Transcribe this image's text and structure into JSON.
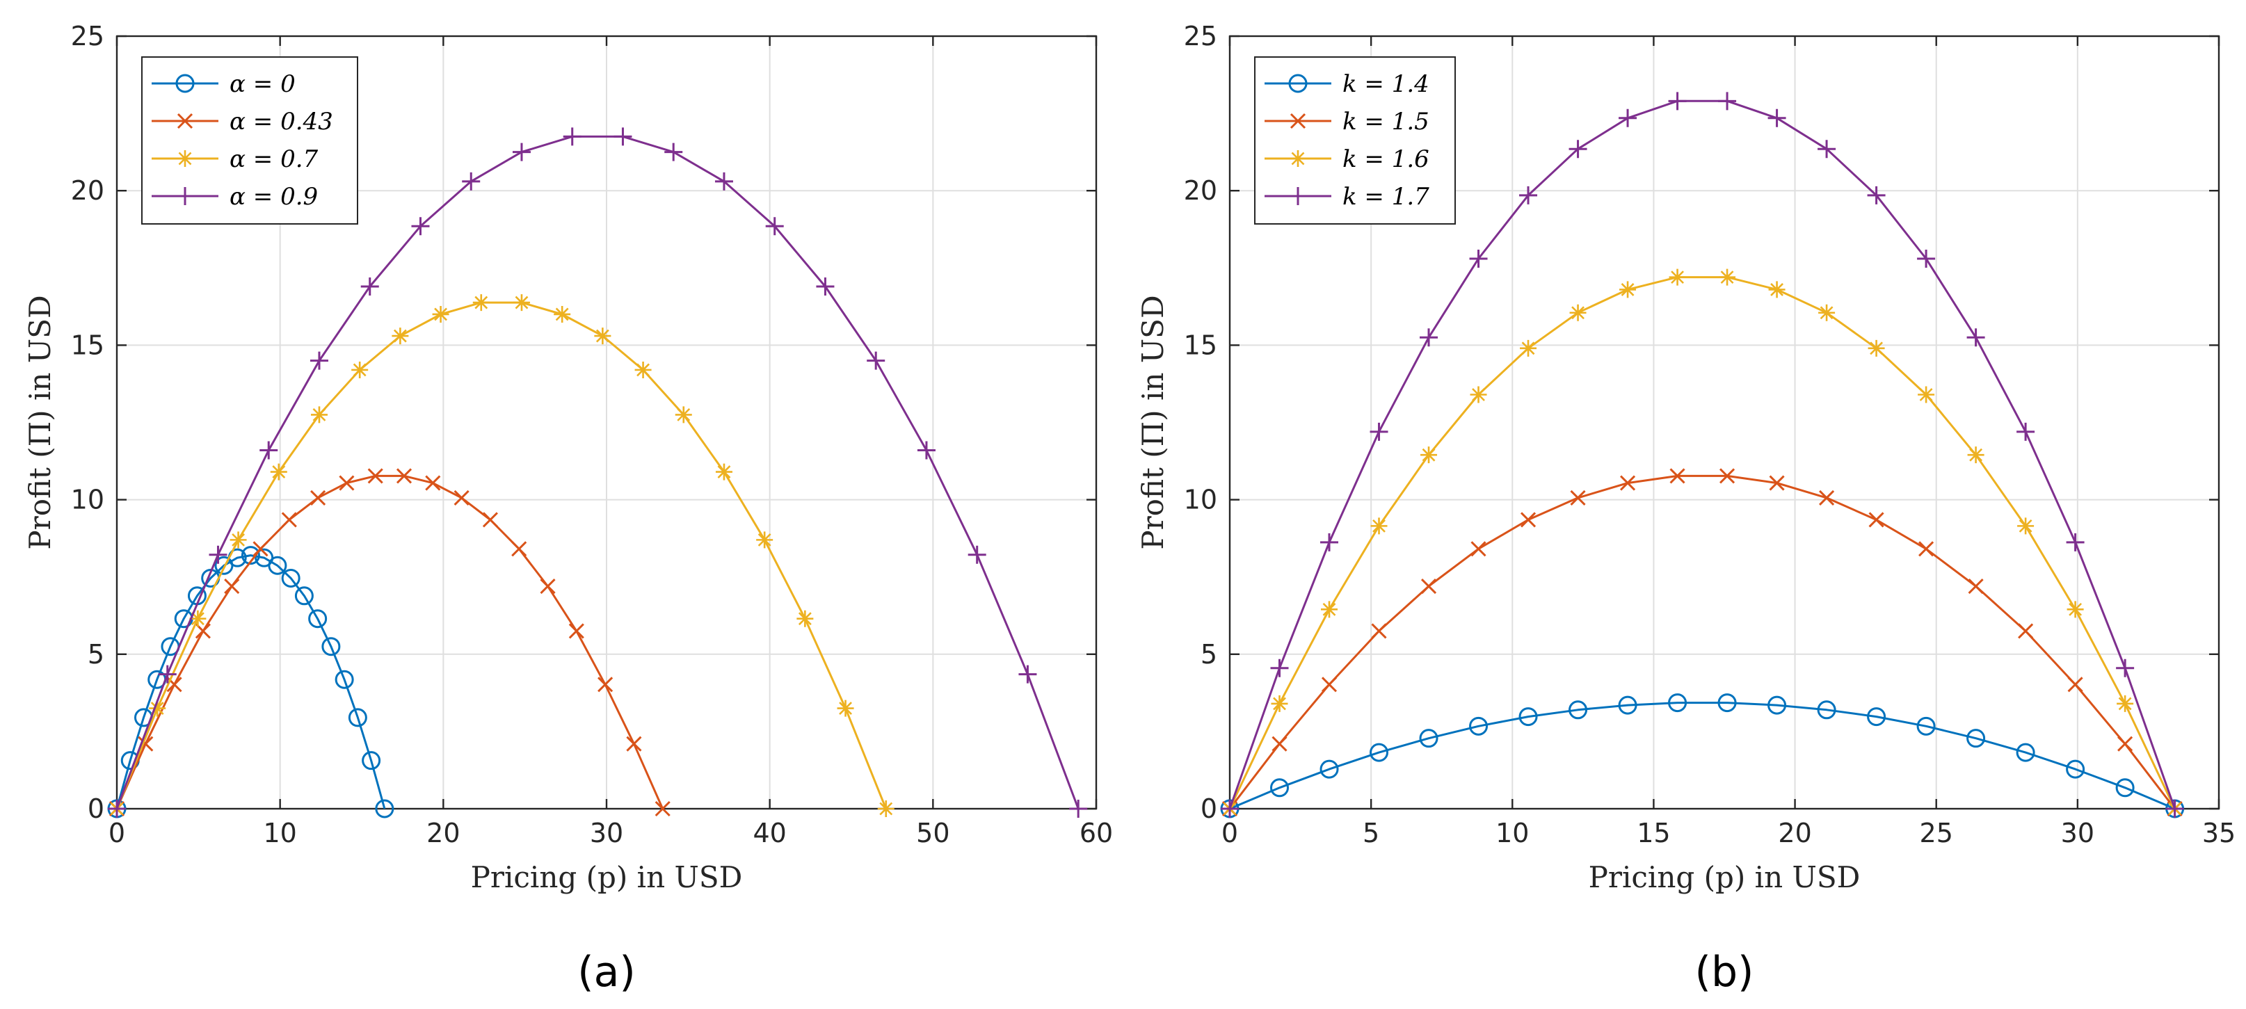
{
  "chart_data": [
    {
      "id": "a",
      "type": "line",
      "panel_label": "(a)",
      "panel_letter": "a",
      "xlabel": "Pricing (p) in USD",
      "ylabel": "Profit (Π) in USD",
      "xlim": [
        0,
        60
      ],
      "ylim": [
        0,
        25
      ],
      "xticks": [
        0,
        10,
        20,
        30,
        40,
        50,
        60
      ],
      "yticks": [
        0,
        5,
        10,
        15,
        20,
        25
      ],
      "xtick_labels": [
        "0",
        "10",
        "20",
        "30",
        "40",
        "50",
        "60"
      ],
      "ytick_labels": [
        "0",
        "5",
        "10",
        "15",
        "20",
        "25"
      ],
      "grid": true,
      "legend_position": "top-left",
      "series": [
        {
          "name": "α = 0",
          "color": "#0072BD",
          "marker": "circle",
          "x": [
            0,
            0.82,
            1.64,
            2.46,
            3.28,
            4.1,
            4.92,
            5.74,
            6.56,
            7.38,
            8.2,
            9.02,
            9.84,
            10.66,
            11.48,
            12.3,
            13.12,
            13.94,
            14.76,
            15.58,
            16.4
          ],
          "y": [
            0,
            1.56,
            2.95,
            4.18,
            5.25,
            6.15,
            6.89,
            7.46,
            7.87,
            8.12,
            8.2,
            8.12,
            7.87,
            7.46,
            6.89,
            6.15,
            5.25,
            4.18,
            2.95,
            1.56,
            0
          ]
        },
        {
          "name": "α = 0.43",
          "color": "#D95319",
          "marker": "x",
          "x": [
            0,
            1.76,
            3.52,
            5.28,
            7.04,
            8.8,
            10.56,
            12.32,
            14.08,
            15.84,
            17.6,
            19.36,
            21.12,
            22.88,
            24.64,
            26.4,
            28.16,
            29.92,
            31.68,
            33.44
          ],
          "y": [
            0,
            2.1,
            4.02,
            5.75,
            7.2,
            8.41,
            9.35,
            10.06,
            10.54,
            10.77,
            10.77,
            10.54,
            10.06,
            9.35,
            8.41,
            7.2,
            5.75,
            4.02,
            2.1,
            0
          ]
        },
        {
          "name": "α = 0.7",
          "color": "#EDB120",
          "marker": "star",
          "x": [
            0,
            2.48,
            4.96,
            7.44,
            9.92,
            12.4,
            14.88,
            17.36,
            19.84,
            22.32,
            24.8,
            27.28,
            29.76,
            32.24,
            34.72,
            37.2,
            39.68,
            42.16,
            44.64,
            47.12
          ],
          "y": [
            0,
            3.25,
            6.15,
            8.7,
            10.9,
            12.75,
            14.2,
            15.3,
            16.0,
            16.38,
            16.38,
            16.0,
            15.3,
            14.2,
            12.75,
            10.9,
            8.7,
            6.15,
            3.25,
            0
          ]
        },
        {
          "name": "α = 0.9",
          "color": "#7E2F8E",
          "marker": "plus",
          "x": [
            0,
            3.1,
            6.2,
            9.3,
            12.4,
            15.5,
            18.6,
            21.7,
            24.8,
            27.9,
            31.0,
            34.1,
            37.2,
            40.3,
            43.4,
            46.5,
            49.6,
            52.7,
            55.8,
            58.9
          ],
          "y": [
            0,
            4.35,
            8.22,
            11.6,
            14.5,
            16.9,
            18.85,
            20.3,
            21.25,
            21.75,
            21.75,
            21.25,
            20.3,
            18.85,
            16.9,
            14.5,
            11.6,
            8.22,
            4.35,
            0
          ]
        }
      ]
    },
    {
      "id": "b",
      "type": "line",
      "panel_label": "(b)",
      "panel_letter": "b",
      "xlabel": "Pricing (p) in USD",
      "ylabel": "Profit (Π) in USD",
      "xlim": [
        0,
        35
      ],
      "ylim": [
        0,
        25
      ],
      "xticks": [
        0,
        5,
        10,
        15,
        20,
        25,
        30,
        35
      ],
      "yticks": [
        0,
        5,
        10,
        15,
        20,
        25
      ],
      "xtick_labels": [
        "0",
        "5",
        "10",
        "15",
        "20",
        "25",
        "30",
        "35"
      ],
      "ytick_labels": [
        "0",
        "5",
        "10",
        "15",
        "20",
        "25"
      ],
      "grid": true,
      "legend_position": "top-left",
      "series": [
        {
          "name": "k = 1.4",
          "color": "#0072BD",
          "marker": "circle",
          "x": [
            0,
            1.76,
            3.52,
            5.28,
            7.04,
            8.8,
            10.56,
            12.32,
            14.08,
            15.84,
            17.6,
            19.36,
            21.12,
            22.88,
            24.64,
            26.4,
            28.16,
            29.92,
            31.68,
            33.44
          ],
          "y": [
            0,
            0.68,
            1.28,
            1.82,
            2.28,
            2.67,
            2.98,
            3.2,
            3.35,
            3.43,
            3.43,
            3.35,
            3.2,
            2.98,
            2.67,
            2.28,
            1.82,
            1.28,
            0.68,
            0
          ]
        },
        {
          "name": "k = 1.5",
          "color": "#D95319",
          "marker": "x",
          "x": [
            0,
            1.76,
            3.52,
            5.28,
            7.04,
            8.8,
            10.56,
            12.32,
            14.08,
            15.84,
            17.6,
            19.36,
            21.12,
            22.88,
            24.64,
            26.4,
            28.16,
            29.92,
            31.68,
            33.44
          ],
          "y": [
            0,
            2.1,
            4.02,
            5.75,
            7.2,
            8.41,
            9.35,
            10.06,
            10.54,
            10.77,
            10.77,
            10.54,
            10.06,
            9.35,
            8.41,
            7.2,
            5.75,
            4.02,
            2.1,
            0
          ]
        },
        {
          "name": "k = 1.6",
          "color": "#EDB120",
          "marker": "star",
          "x": [
            0,
            1.76,
            3.52,
            5.28,
            7.04,
            8.8,
            10.56,
            12.32,
            14.08,
            15.84,
            17.6,
            19.36,
            21.12,
            22.88,
            24.64,
            26.4,
            28.16,
            29.92,
            31.68,
            33.44
          ],
          "y": [
            0,
            3.4,
            6.45,
            9.15,
            11.45,
            13.4,
            14.9,
            16.05,
            16.8,
            17.2,
            17.2,
            16.8,
            16.05,
            14.9,
            13.4,
            11.45,
            9.15,
            6.45,
            3.4,
            0
          ]
        },
        {
          "name": "k = 1.7",
          "color": "#7E2F8E",
          "marker": "plus",
          "x": [
            0,
            1.76,
            3.52,
            5.28,
            7.04,
            8.8,
            10.56,
            12.32,
            14.08,
            15.84,
            17.6,
            19.36,
            21.12,
            22.88,
            24.64,
            26.4,
            28.16,
            29.92,
            31.68,
            33.44
          ],
          "y": [
            0,
            4.55,
            8.62,
            12.2,
            15.25,
            17.8,
            19.85,
            21.35,
            22.35,
            22.9,
            22.9,
            22.35,
            21.35,
            19.85,
            17.8,
            15.25,
            12.2,
            8.62,
            4.55,
            0
          ]
        }
      ]
    }
  ]
}
